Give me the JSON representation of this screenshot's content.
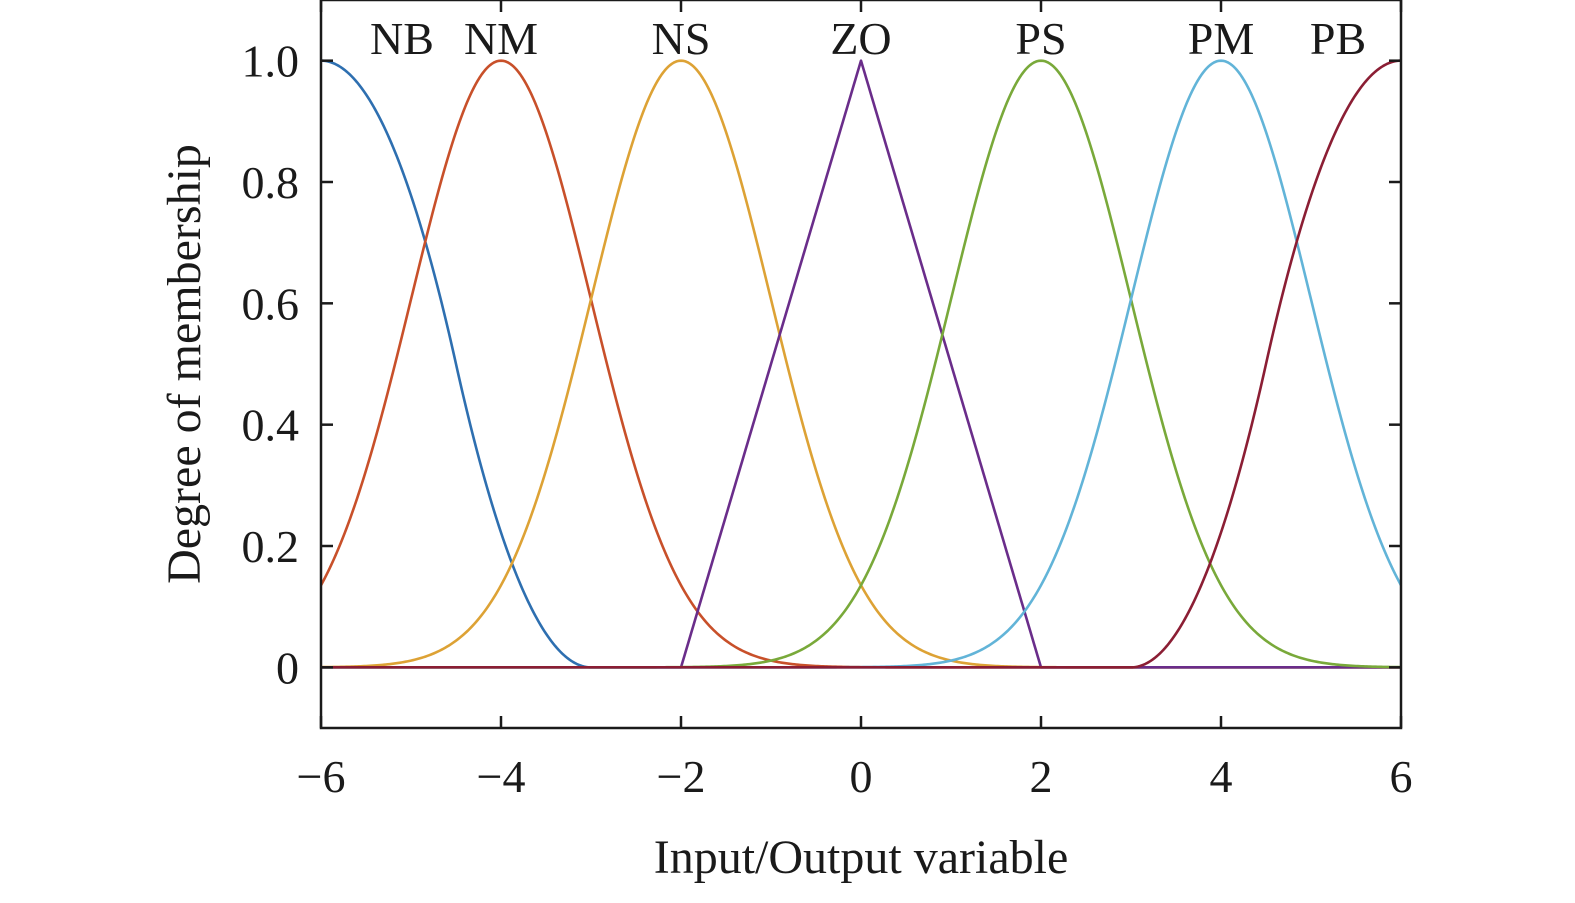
{
  "chart_data": {
    "type": "line",
    "xlabel": "Input/Output variable",
    "ylabel": "Degree of membership",
    "xlim": [
      -6,
      6
    ],
    "ylim": [
      -0.1,
      1.1
    ],
    "x_ticks": [
      {
        "value": -6,
        "label": "−6"
      },
      {
        "value": -4,
        "label": "−4"
      },
      {
        "value": -2,
        "label": "−2"
      },
      {
        "value": 0,
        "label": "0"
      },
      {
        "value": 2,
        "label": "2"
      },
      {
        "value": 4,
        "label": "4"
      },
      {
        "value": 6,
        "label": "6"
      }
    ],
    "y_ticks": [
      {
        "value": 0,
        "label": "0"
      },
      {
        "value": 0.2,
        "label": "0.2"
      },
      {
        "value": 0.4,
        "label": "0.4"
      },
      {
        "value": 0.6,
        "label": "0.6"
      },
      {
        "value": 0.8,
        "label": "0.8"
      },
      {
        "value": 1.0,
        "label": "1.0"
      }
    ],
    "grid": false,
    "series": [
      {
        "name": "NB",
        "shape": "z-shaped",
        "params": [
          -6,
          -3
        ],
        "color": "#2e6fb0"
      },
      {
        "name": "NM",
        "shape": "gaussian",
        "center": -4,
        "sigma": 1.0,
        "color": "#c8502a"
      },
      {
        "name": "NS",
        "shape": "gaussian",
        "center": -2,
        "sigma": 1.0,
        "color": "#dda235"
      },
      {
        "name": "ZO",
        "shape": "triangular",
        "params": [
          -2,
          0,
          2
        ],
        "color": "#6a2d8a"
      },
      {
        "name": "PS",
        "shape": "gaussian",
        "center": 2,
        "sigma": 1.0,
        "color": "#79a93a"
      },
      {
        "name": "PM",
        "shape": "gaussian",
        "center": 4,
        "sigma": 1.0,
        "color": "#62b4d8"
      },
      {
        "name": "PB",
        "shape": "s-shaped",
        "params": [
          3,
          6
        ],
        "color": "#8b1e34"
      }
    ],
    "curve_labels": [
      {
        "text": "NB",
        "x": -5.1
      },
      {
        "text": "NM",
        "x": -4.0
      },
      {
        "text": "NS",
        "x": -2.0
      },
      {
        "text": "ZO",
        "x": 0.0
      },
      {
        "text": "PS",
        "x": 2.0
      },
      {
        "text": "PM",
        "x": 4.0
      },
      {
        "text": "PB",
        "x": 5.3
      }
    ]
  }
}
